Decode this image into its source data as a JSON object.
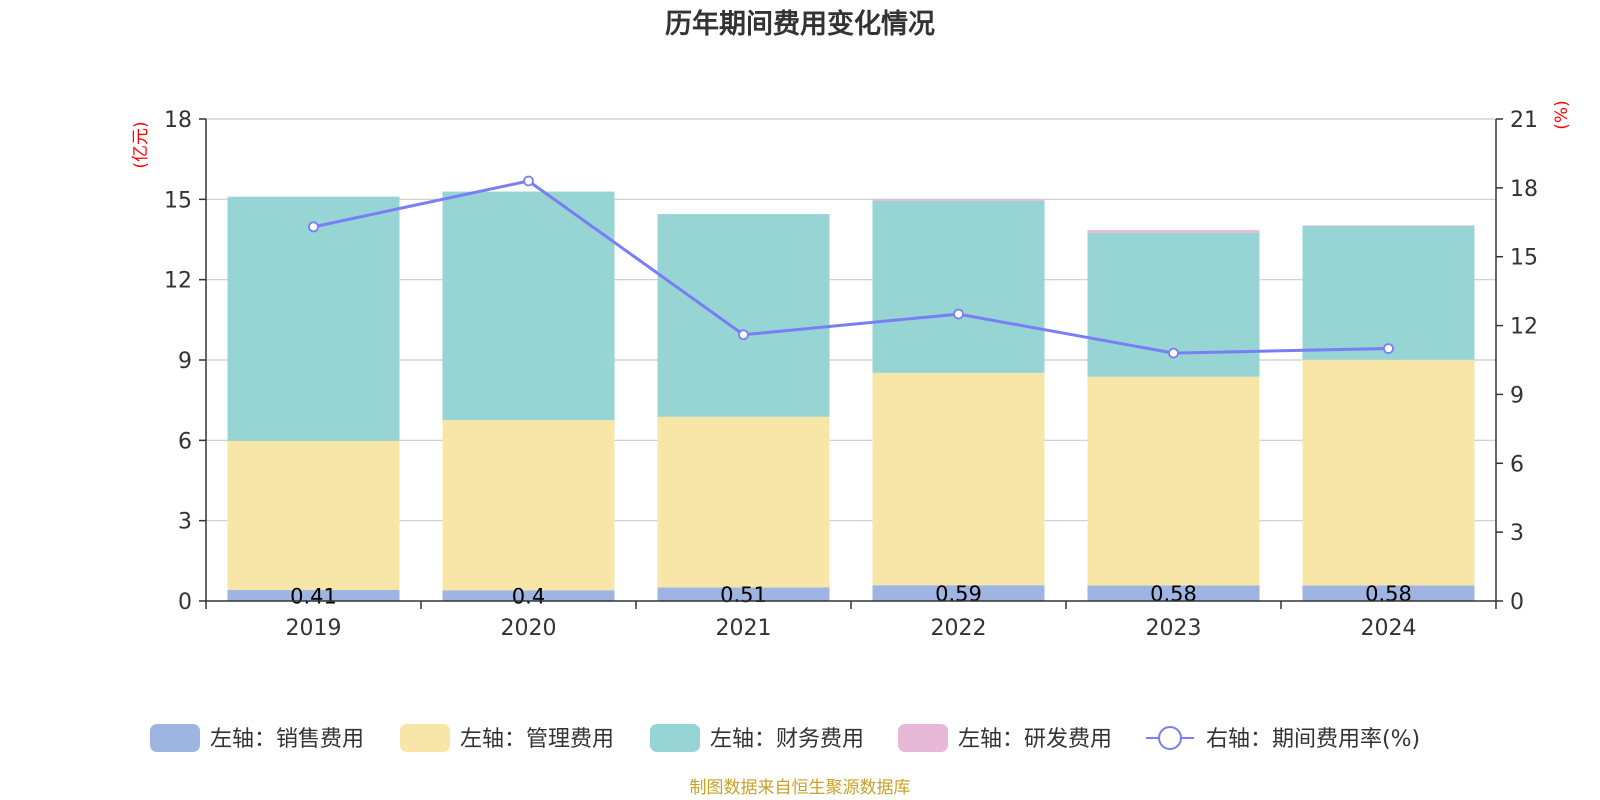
{
  "chart_data": {
    "type": "bar",
    "stacked": true,
    "title": "历年期间费用变化情况",
    "source": "制图数据来自恒生聚源数据库",
    "categories": [
      "2019",
      "2020",
      "2021",
      "2022",
      "2023",
      "2024"
    ],
    "left_axis": {
      "unit": "(亿元)",
      "min": 0,
      "max": 18,
      "ticks": [
        "0",
        "3",
        "6",
        "9",
        "12",
        "15",
        "18"
      ]
    },
    "right_axis": {
      "unit": "(%)",
      "min": 0,
      "max": 21,
      "ticks": [
        "0",
        "3",
        "6",
        "9",
        "12",
        "15",
        "18",
        "21"
      ]
    },
    "series": [
      {
        "name": "左轴：销售费用",
        "kind": "bar",
        "axis": "left",
        "color": "#9db5e0",
        "values": [
          0.41,
          0.4,
          0.51,
          0.59,
          0.58,
          0.58
        ],
        "labels": [
          "0.41",
          "0.4",
          "0.51",
          "0.59",
          "0.58",
          "0.58"
        ]
      },
      {
        "name": "左轴：管理费用",
        "kind": "bar",
        "axis": "left",
        "color": "#f8e6a8",
        "values": [
          5.57,
          6.36,
          6.37,
          7.93,
          7.8,
          8.43
        ]
      },
      {
        "name": "左轴：财务费用",
        "kind": "bar",
        "axis": "left",
        "color": "#97d4d4",
        "values": [
          9.12,
          8.53,
          7.57,
          6.43,
          5.37,
          5.0
        ]
      },
      {
        "name": "左轴：研发费用",
        "kind": "bar",
        "axis": "left",
        "color": "#e8b8d8",
        "values": [
          0.0,
          0.0,
          0.0,
          0.05,
          0.1,
          0.02
        ]
      },
      {
        "name": "右轴：期间费用率(%)",
        "kind": "line",
        "axis": "right",
        "color": "#7a7ef5",
        "values": [
          16.3,
          18.3,
          11.6,
          12.5,
          10.8,
          11.0
        ]
      }
    ]
  }
}
